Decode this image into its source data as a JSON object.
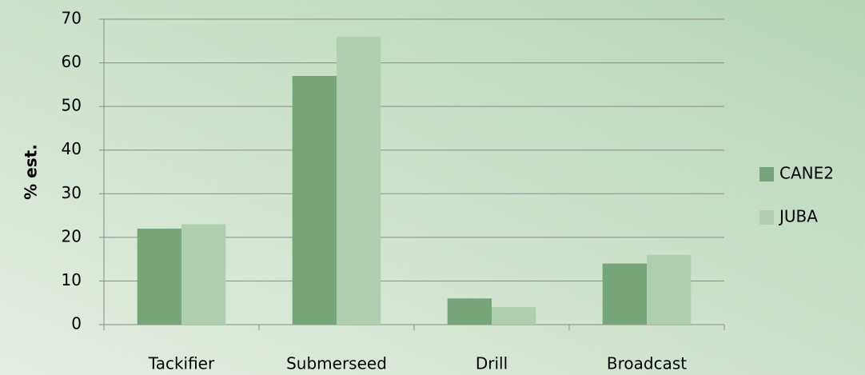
{
  "chart_data": {
    "type": "bar",
    "y_label": "% est.",
    "categories": [
      "Tackifier",
      "Submerseed",
      "Drill",
      "Broadcast"
    ],
    "series": [
      {
        "name": "CANE2",
        "color": "#76a57a",
        "values": [
          22,
          57,
          6,
          14
        ]
      },
      {
        "name": "JUBA",
        "color": "#afcdaf",
        "values": [
          23,
          66,
          4,
          16
        ]
      }
    ],
    "ylim": [
      0,
      70
    ],
    "yticks": [
      0,
      10,
      20,
      30,
      40,
      50,
      60,
      70
    ],
    "grid": true,
    "legend": "right"
  }
}
